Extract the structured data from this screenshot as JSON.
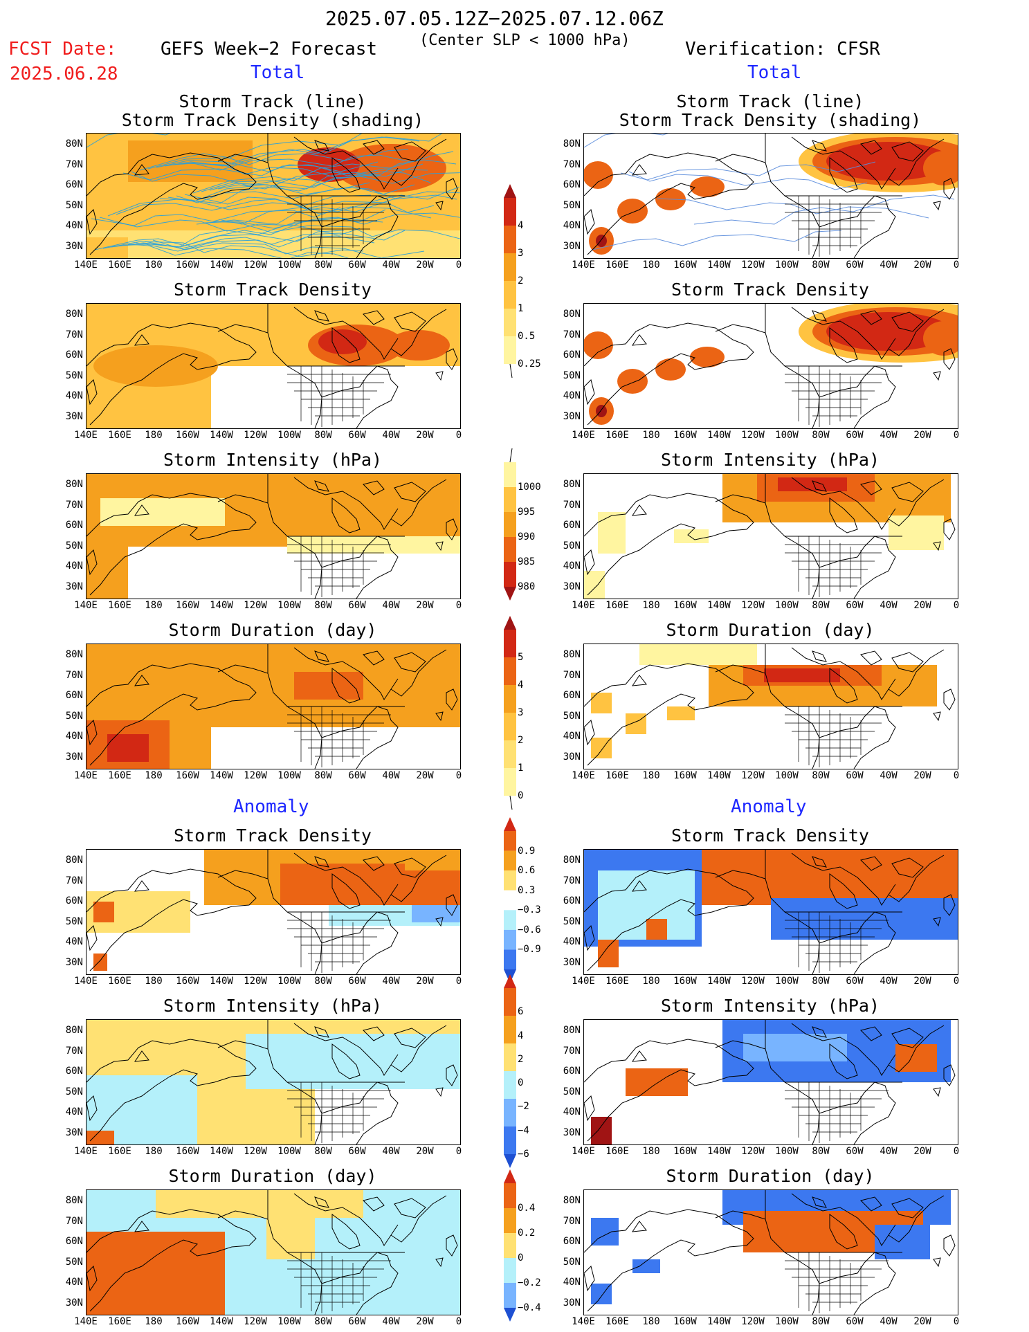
{
  "header": {
    "time_range": "2025.07.05.12Z−2025.07.12.06Z",
    "fcst_label": "FCST Date:",
    "fcst_date": "2025.06.28",
    "left_title": "GEFS Week−2 Forecast",
    "center_note": "(Center SLP < 1000 hPa)",
    "right_title": "Verification: CFSR",
    "total_left": "Total",
    "total_right": "Total",
    "anomaly_left": "Anomaly",
    "anomaly_right": "Anomaly"
  },
  "axes": {
    "lat_labels": [
      "80N",
      "70N",
      "60N",
      "50N",
      "40N",
      "30N"
    ],
    "lon_labels": [
      "140E",
      "160E",
      "180",
      "160W",
      "140W",
      "120W",
      "100W",
      "80W",
      "60W",
      "40W",
      "20W",
      "0"
    ]
  },
  "panel_titles": {
    "row1_line1": "Storm Track (line)",
    "row1_line2": "Storm Track Density (shading)",
    "density": "Storm Track Density",
    "intensity": "Storm Intensity (hPa)",
    "duration": "Storm Duration (day)"
  },
  "colorbars": {
    "density_total": [
      "4",
      "3",
      "2",
      "1",
      "0.5",
      "0.25"
    ],
    "intensity_total": [
      "1000",
      "995",
      "990",
      "985",
      "980"
    ],
    "duration_total": [
      "5",
      "4",
      "3",
      "2",
      "1",
      "0"
    ],
    "density_anom": [
      "0.9",
      "0.6",
      "0.3",
      "−0.3",
      "−0.6",
      "−0.9"
    ],
    "intensity_anom": [
      "6",
      "4",
      "2",
      "0",
      "−2",
      "−4",
      "−6"
    ],
    "duration_anom": [
      "0.4",
      "0.2",
      "0",
      "−0.2",
      "−0.4"
    ]
  },
  "colors": {
    "pale_yellow": "#fff5a0",
    "yellow": "#ffe173",
    "light_orange": "#ffc341",
    "orange": "#f5a01e",
    "red_orange": "#eb6414",
    "red": "#d22814",
    "dark_red": "#a01414",
    "light_blue": "#b4f0fa",
    "mid_blue": "#78b4ff",
    "blue": "#3c78f0",
    "dark_blue": "#1e50d2",
    "track_blue": "#28a0dc",
    "header_red": "#f01e1e",
    "header_blue": "#1e28ff"
  }
}
